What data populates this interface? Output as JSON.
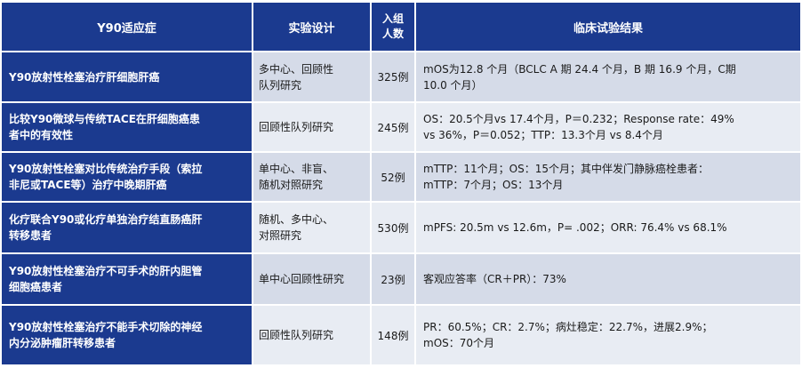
{
  "header": {
    "indication": "Y90适应症",
    "design": "实验设计",
    "enroll": "入组\n人数",
    "result": "临床试验结果"
  },
  "rows": [
    {
      "indication": "Y90放射性栓塞治疗肝细胞肝癌",
      "design": "多中心、回顾性\n队列研究",
      "count": "325例",
      "result": "mOS为12.8 个月（BCLC A 期 24.4 个月，B 期 16.9 个月，C期\n10.0 个月）"
    },
    {
      "indication": "比较Y90微球与传统TACE在肝细胞癌患\n者中的有效性",
      "design": "回顾性队列研究",
      "count": "245例",
      "result": "OS：20.5个月vs 17.4个月，P＝0.232；Response rate：49%\nvs 36%，P＝0.052；TTP：13.3个月 vs 8.4个月"
    },
    {
      "indication": "Y90放射性栓塞对比传统治疗手段（索拉\n非尼或TACE等）治疗中晚期肝癌",
      "design": "单中心、非盲、\n随机对照研究",
      "count": "52例",
      "result": "mTTP：11个月；OS：15个月；其中伴发门静脉癌栓患者：\nmTTP：7个月；OS：13个月"
    },
    {
      "indication": "化疗联合Y90或化疗单独治疗结直肠癌肝\n转移患者",
      "design": "随机、多中心、\n对照研究",
      "count": "530例",
      "result": "mPFS: 20.5m vs 12.6m，P= .002；ORR: 76.4% vs 68.1%"
    },
    {
      "indication": "Y90放射性栓塞治疗不可手术的肝内胆管\n细胞癌患者",
      "design": "单中心回顾性研究",
      "count": "23例",
      "result": "客观应答率（CR＋PR）：73%"
    },
    {
      "indication": "Y90放射性栓塞治疗不能手术切除的神经\n内分泌肿瘤肝转移患者",
      "design": "回顾性队列研究",
      "count": "148例",
      "result": "PR：60.5%；CR：2.7%；病灶稳定：22.7%，进展2.9%；\nmOS：70个月"
    }
  ]
}
